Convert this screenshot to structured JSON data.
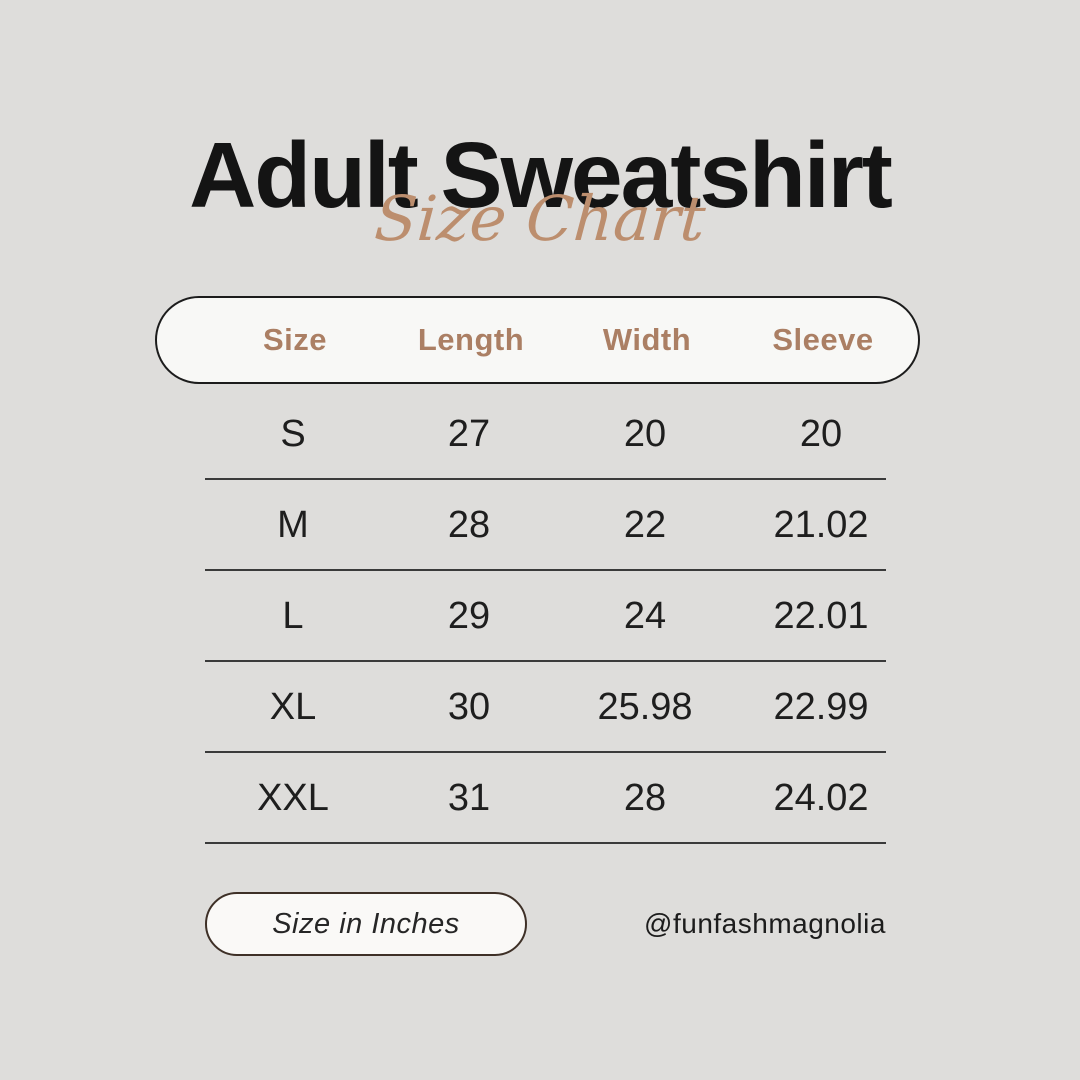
{
  "page": {
    "title": "Adult Sweatshirt",
    "subtitle": "Size Chart",
    "background_color": "#dedddb",
    "accent_color": "#bc8e6e",
    "header_text_color": "#ab7f64",
    "pill_fill_color": "#f8f8f6",
    "pill_border_color": "#1c1c1c",
    "unit_pill_border_color": "#3e3027"
  },
  "chart_data": {
    "type": "table",
    "title": "Adult Sweatshirt Size Chart",
    "unit": "inches",
    "columns": [
      "Size",
      "Length",
      "Width",
      "Sleeve"
    ],
    "rows": [
      {
        "size": "S",
        "length": "27",
        "width": "20",
        "sleeve": "20"
      },
      {
        "size": "M",
        "length": "28",
        "width": "22",
        "sleeve": "21.02"
      },
      {
        "size": "L",
        "length": "29",
        "width": "24",
        "sleeve": "22.01"
      },
      {
        "size": "XL",
        "length": "30",
        "width": "25.98",
        "sleeve": "22.99"
      },
      {
        "size": "XXL",
        "length": "31",
        "width": "28",
        "sleeve": "24.02"
      }
    ]
  },
  "footer": {
    "unit_label": "Size in Inches",
    "handle": "@funfashmagnolia"
  }
}
